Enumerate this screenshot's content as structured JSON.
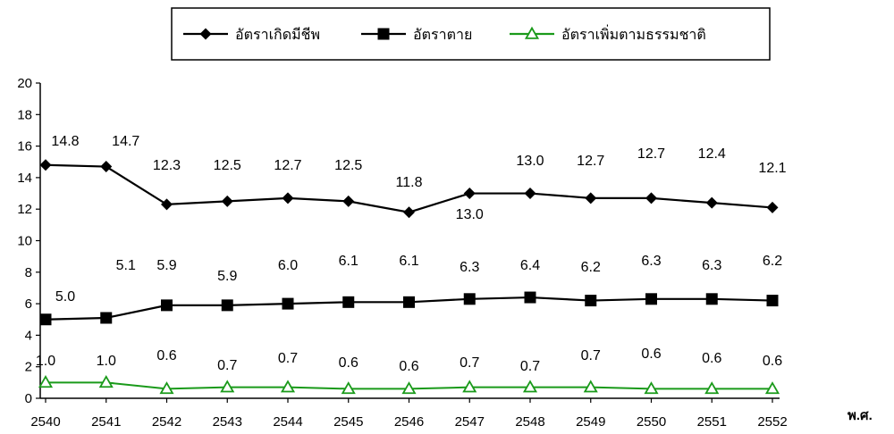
{
  "chart_data": {
    "type": "line",
    "title": "",
    "xlabel": "พ.ศ.",
    "ylabel": "",
    "categories": [
      "2540",
      "2541",
      "2542",
      "2543",
      "2544",
      "2545",
      "2546",
      "2547",
      "2548",
      "2549",
      "2550",
      "2551",
      "2552"
    ],
    "ylim": [
      0,
      20
    ],
    "yticks": [
      0,
      2,
      4,
      6,
      8,
      10,
      12,
      14,
      16,
      18,
      20
    ],
    "grid": false,
    "legend_position": "top-center",
    "series": [
      {
        "name": "อัตราเกิดมีชีพ",
        "marker": "diamond",
        "color": "#000000",
        "values": [
          14.8,
          14.7,
          12.3,
          12.5,
          12.7,
          12.5,
          11.8,
          13.0,
          13.0,
          12.7,
          12.7,
          12.4,
          12.1
        ],
        "labels": [
          "14.8",
          "14.7",
          "12.3",
          "12.5",
          "12.7",
          "12.5",
          "11.8",
          "13.0",
          "13.0",
          "12.7",
          "12.7",
          "12.4",
          "12.1"
        ]
      },
      {
        "name": "อัตราตาย",
        "marker": "square",
        "color": "#000000",
        "values": [
          5.0,
          5.1,
          5.9,
          5.9,
          6.0,
          6.1,
          6.1,
          6.3,
          6.4,
          6.2,
          6.3,
          6.3,
          6.2
        ],
        "labels": [
          "5.0",
          "5.1",
          "5.9",
          "5.9",
          "6.0",
          "6.1",
          "6.1",
          "6.3",
          "6.4",
          "6.2",
          "6.3",
          "6.3",
          "6.2"
        ]
      },
      {
        "name": "อัตราเพิ่มตามธรรมชาติ",
        "marker": "triangle-open",
        "color": "#1a9a1a",
        "values": [
          1.0,
          1.0,
          0.6,
          0.7,
          0.7,
          0.6,
          0.6,
          0.7,
          0.7,
          0.7,
          0.6,
          0.6,
          0.6
        ],
        "labels": [
          "1.0",
          "1.0",
          "0.6",
          "0.7",
          "0.7",
          "0.6",
          "0.6",
          "0.7",
          "0.7",
          "0.7",
          "0.6",
          "0.6",
          "0.6"
        ]
      }
    ]
  }
}
